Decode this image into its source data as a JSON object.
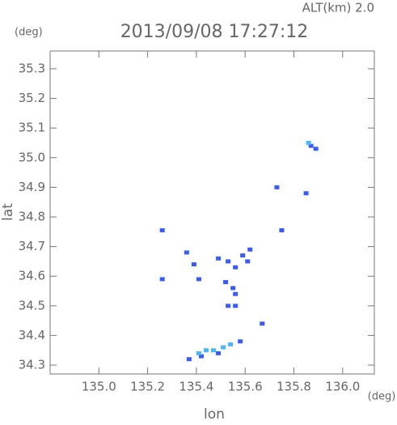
{
  "chart_data": {
    "type": "scatter",
    "title": "2013/09/08 17:27:12",
    "subtitle": "ALT(km) 2.0",
    "xlabel": "lon",
    "ylabel": "lat",
    "xunit": "(deg)",
    "yunit": "(deg)",
    "xlim": [
      134.8,
      136.13
    ],
    "ylim": [
      34.27,
      35.36
    ],
    "xticks": [
      {
        "value": 135,
        "label": "135.0"
      },
      135.2,
      135.4,
      135.6,
      135.8,
      {
        "value": 136,
        "label": "136.0"
      }
    ],
    "yticks": [
      34.3,
      34.4,
      34.5,
      34.6,
      34.7,
      34.8,
      34.9,
      {
        "value": 35,
        "label": "35.0"
      },
      35.1,
      35.2,
      35.3
    ],
    "grid": false,
    "series": [
      {
        "color": "#3b5cf0",
        "x": [
          135.87,
          135.89,
          135.73,
          135.75,
          135.85,
          135.26,
          135.26,
          135.36,
          135.39,
          135.41,
          135.49,
          135.53,
          135.56,
          135.59,
          135.62,
          135.61,
          135.55,
          135.56,
          135.53,
          135.56,
          135.52,
          135.67,
          135.58,
          135.37,
          135.42,
          135.49
        ],
        "y": [
          35.04,
          35.03,
          34.9,
          34.755,
          34.88,
          34.755,
          34.59,
          34.68,
          34.64,
          34.59,
          34.66,
          34.65,
          34.63,
          34.67,
          34.69,
          34.65,
          34.56,
          34.54,
          34.5,
          34.5,
          34.58,
          34.44,
          34.38,
          34.32,
          34.33,
          34.34
        ]
      },
      {
        "color": "#4db4f5",
        "x": [
          135.41,
          135.44,
          135.47,
          135.51,
          135.54,
          135.86
        ],
        "y": [
          34.34,
          34.35,
          34.35,
          34.36,
          34.37,
          35.05
        ]
      }
    ]
  }
}
